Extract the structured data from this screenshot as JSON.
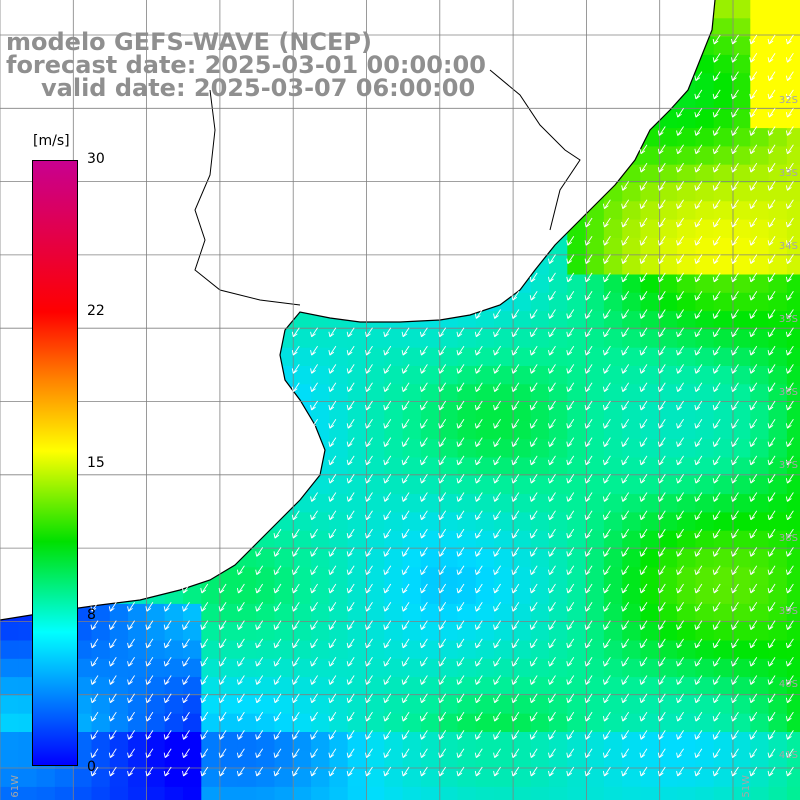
{
  "header": {
    "line1": "modelo GEFS-WAVE (NCEP)",
    "line2": "forecast date: 2025-03-01 00:00:00",
    "line3": "valid date: 2025-03-07 06:00:00"
  },
  "colorbar": {
    "unit": "[m/s]",
    "ticks": [
      "30",
      "22",
      "15",
      "8",
      "0"
    ],
    "min": 0,
    "max": 30
  },
  "axes": {
    "lat_labels": [
      "32S",
      "33S",
      "34S",
      "35S",
      "36S",
      "37S",
      "38S",
      "39S",
      "40S",
      "41S"
    ],
    "lon_labels": [
      "61W",
      "51W"
    ]
  },
  "colors": {
    "land": "#ffffff",
    "grid": "#808080",
    "coast": "#000000",
    "arrows": "#ffffff"
  }
}
